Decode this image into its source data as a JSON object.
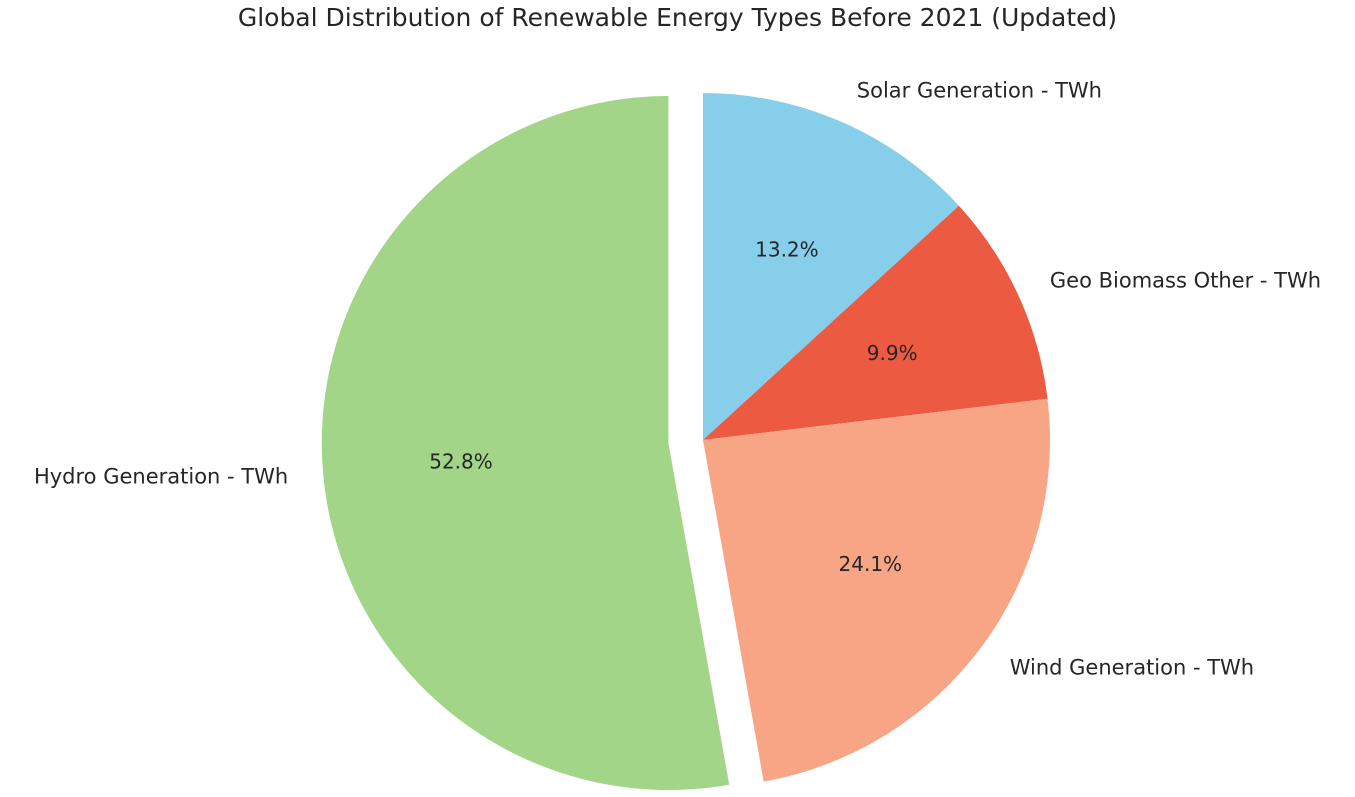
{
  "chart_data": {
    "type": "pie",
    "title": "Global Distribution of Renewable Energy Types Before 2021 (Updated)",
    "categories": [
      "Solar Generation - TWh",
      "Geo Biomass Other - TWh",
      "Wind Generation - TWh",
      "Hydro Generation - TWh"
    ],
    "values": [
      13.2,
      9.9,
      24.1,
      52.8
    ],
    "percent_labels": [
      "13.2%",
      "9.9%",
      "24.1%",
      "52.8%"
    ],
    "colors": [
      "#87CEEB",
      "#EB5A41",
      "#F7A584",
      "#A2D588"
    ],
    "explode": [
      0,
      0,
      0,
      0.1
    ],
    "start_angle": 90,
    "direction": "clockwise",
    "label_distance": 1.1,
    "pct_distance": 0.6,
    "legend_position": "none",
    "background_color": "#ffffff",
    "text_color": "#262626",
    "label_font_size": 21,
    "pct_font_size": 20
  }
}
